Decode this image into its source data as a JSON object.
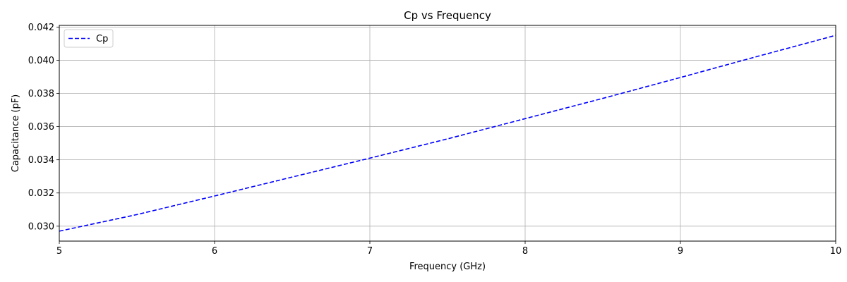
{
  "chart_data": {
    "type": "line",
    "title": "Cp vs Frequency",
    "xlabel": "Frequency (GHz)",
    "ylabel": "Capacitance (pF)",
    "xlim": [
      5,
      10
    ],
    "ylim": [
      0.0291,
      0.0421
    ],
    "xticks": [
      5,
      6,
      7,
      8,
      9,
      10
    ],
    "xtick_labels": [
      "5",
      "6",
      "7",
      "8",
      "9",
      "10"
    ],
    "yticks": [
      0.03,
      0.032,
      0.034,
      0.036,
      0.038,
      0.04,
      0.042
    ],
    "ytick_labels": [
      "0.030",
      "0.032",
      "0.034",
      "0.036",
      "0.038",
      "0.040",
      "0.042"
    ],
    "grid": true,
    "legend_position": "upper-left",
    "series": [
      {
        "name": "Cp",
        "color": "#0000ff",
        "line_style": "dashed",
        "x": [
          5.0,
          5.5,
          6.0,
          6.5,
          7.0,
          7.5,
          8.0,
          8.5,
          9.0,
          9.5,
          10.0
        ],
        "y": [
          0.0297,
          0.0307,
          0.03182,
          0.03296,
          0.0341,
          0.03526,
          0.03648,
          0.0377,
          0.03896,
          0.04024,
          0.0415
        ]
      }
    ]
  }
}
